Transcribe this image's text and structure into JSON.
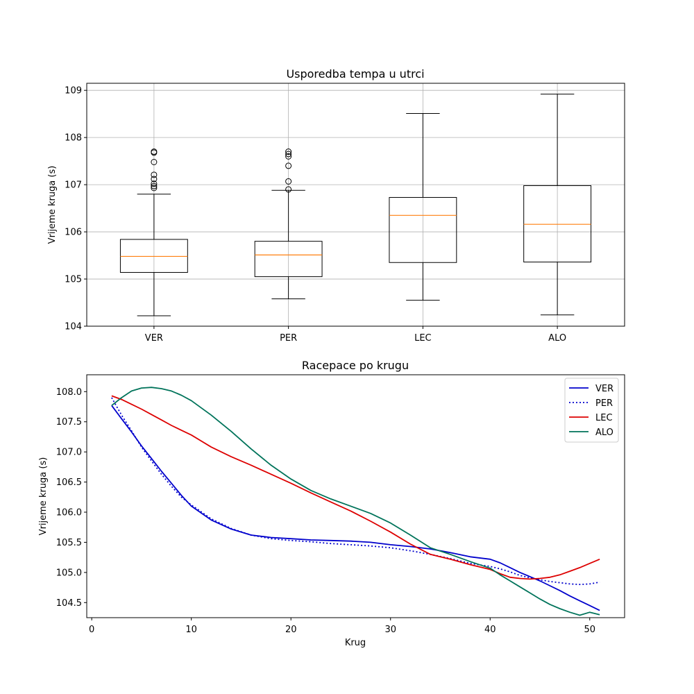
{
  "chart_data": [
    {
      "type": "box",
      "title": "Usporedba tempa u utrci",
      "xlabel": "",
      "ylabel": "Vrijeme kruga (s)",
      "ylim": [
        104,
        109.15
      ],
      "yticks": [
        104,
        105,
        106,
        107,
        108,
        109
      ],
      "grid": true,
      "colors": {
        "box": "#000000",
        "median": "#ff7f0e",
        "grid": "#b0b0b0"
      },
      "categories": [
        "VER",
        "PER",
        "LEC",
        "ALO"
      ],
      "boxes": [
        {
          "name": "VER",
          "whislo": 104.22,
          "q1": 105.14,
          "med": 105.48,
          "q3": 105.84,
          "whishi": 106.8,
          "fliers": [
            106.93,
            106.97,
            107.02,
            107.12,
            107.21,
            107.48,
            107.68,
            107.7
          ]
        },
        {
          "name": "PER",
          "whislo": 104.58,
          "q1": 105.05,
          "med": 105.51,
          "q3": 105.8,
          "whishi": 106.88,
          "fliers": [
            106.9,
            107.07,
            107.4,
            107.6,
            107.65,
            107.7
          ]
        },
        {
          "name": "LEC",
          "whislo": 104.55,
          "q1": 105.35,
          "med": 106.35,
          "q3": 106.73,
          "whishi": 108.51,
          "fliers": []
        },
        {
          "name": "ALO",
          "whislo": 104.24,
          "q1": 105.36,
          "med": 106.16,
          "q3": 106.98,
          "whishi": 108.92,
          "fliers": []
        }
      ]
    },
    {
      "type": "line",
      "title": "Racepace po krugu",
      "xlabel": "Krug",
      "ylabel": "Vrijeme kruga (s)",
      "xlim": [
        -0.5,
        53.5
      ],
      "ylim": [
        104.25,
        108.28
      ],
      "xticks": [
        0,
        10,
        20,
        30,
        40,
        50
      ],
      "yticks": [
        104.5,
        105.0,
        105.5,
        106.0,
        106.5,
        107.0,
        107.5,
        108.0
      ],
      "ytick_labels": [
        "104.5",
        "105.0",
        "105.5",
        "106.0",
        "106.5",
        "107.0",
        "107.5",
        "108.0"
      ],
      "grid": false,
      "legend": "top-right",
      "x": [
        2,
        3,
        4,
        5,
        6,
        7,
        8,
        9,
        10,
        12,
        14,
        16,
        18,
        20,
        22,
        24,
        26,
        28,
        30,
        32,
        34,
        36,
        38,
        40,
        41,
        42,
        43,
        44,
        45,
        46,
        47,
        48,
        49,
        50,
        51
      ],
      "series": [
        {
          "name": "VER",
          "color": "#0000cc",
          "style": "solid",
          "values": [
            107.77,
            107.55,
            107.33,
            107.1,
            106.89,
            106.68,
            106.48,
            106.28,
            106.1,
            105.87,
            105.72,
            105.62,
            105.58,
            105.56,
            105.54,
            105.53,
            105.52,
            105.5,
            105.46,
            105.43,
            105.39,
            105.33,
            105.26,
            105.22,
            105.16,
            105.08,
            105.0,
            104.93,
            104.86,
            104.78,
            104.7,
            104.61,
            104.53,
            104.45,
            104.37
          ]
        },
        {
          "name": "PER",
          "color": "#0000cc",
          "style": "dotted",
          "values": [
            107.9,
            107.61,
            107.35,
            107.08,
            106.85,
            106.63,
            106.43,
            106.25,
            106.12,
            105.89,
            105.73,
            105.62,
            105.56,
            105.53,
            105.51,
            105.48,
            105.46,
            105.44,
            105.41,
            105.36,
            105.3,
            105.23,
            105.15,
            105.1,
            105.06,
            105.01,
            104.95,
            104.91,
            104.88,
            104.85,
            104.83,
            104.81,
            104.8,
            104.81,
            104.84
          ]
        },
        {
          "name": "LEC",
          "color": "#dd0000",
          "style": "solid",
          "values": [
            107.93,
            107.87,
            107.79,
            107.71,
            107.62,
            107.53,
            107.44,
            107.36,
            107.28,
            107.08,
            106.92,
            106.78,
            106.63,
            106.48,
            106.32,
            106.17,
            106.02,
            105.85,
            105.67,
            105.47,
            105.3,
            105.22,
            105.13,
            105.05,
            104.98,
            104.92,
            104.9,
            104.89,
            104.9,
            104.92,
            104.96,
            105.02,
            105.08,
            105.15,
            105.22
          ]
        },
        {
          "name": "ALO",
          "color": "#00735a",
          "style": "solid",
          "values": [
            107.77,
            107.9,
            108.01,
            108.06,
            108.07,
            108.05,
            108.01,
            107.94,
            107.85,
            107.61,
            107.34,
            107.05,
            106.78,
            106.55,
            106.36,
            106.22,
            106.1,
            105.98,
            105.82,
            105.62,
            105.41,
            105.3,
            105.18,
            105.07,
            104.96,
            104.86,
            104.76,
            104.66,
            104.56,
            104.47,
            104.4,
            104.34,
            104.29,
            104.34,
            104.3
          ]
        }
      ]
    }
  ]
}
